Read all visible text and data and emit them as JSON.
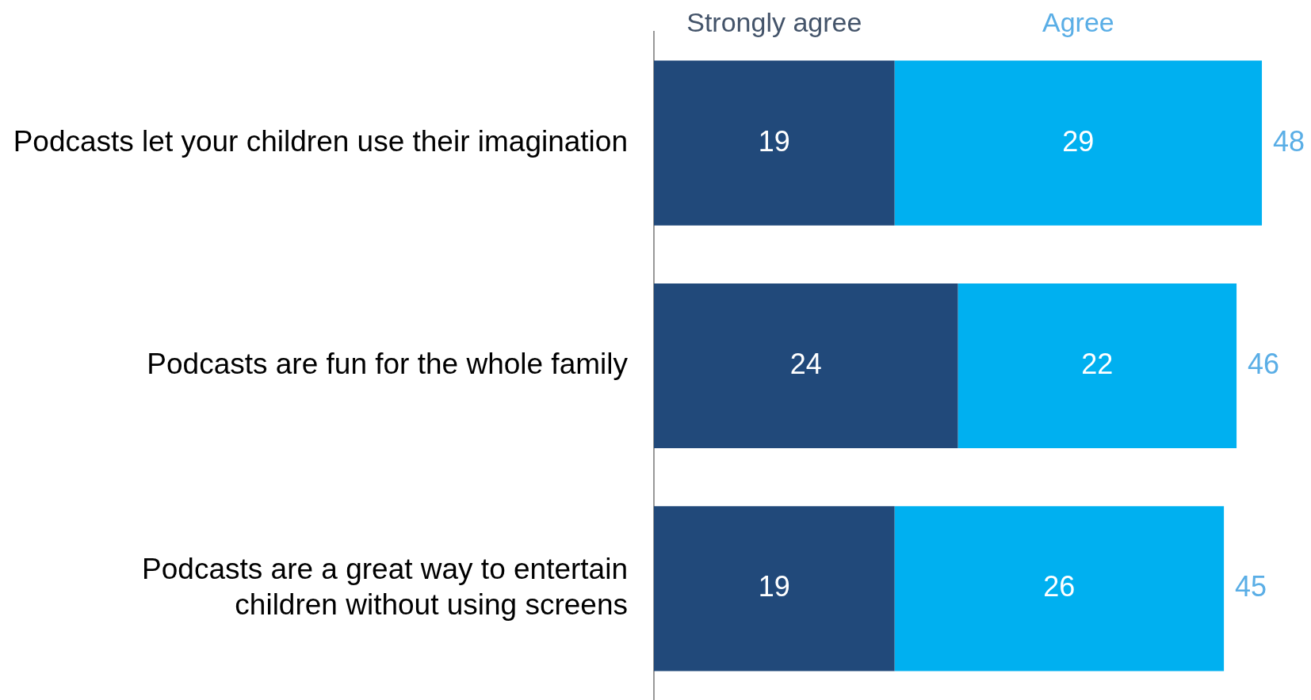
{
  "chart_data": {
    "type": "bar",
    "orientation": "horizontal",
    "stacked": true,
    "categories": [
      "Podcasts let your children use their imagination",
      "Podcasts are fun for the whole family",
      "Podcasts are a great way to entertain\nchildren without using screens"
    ],
    "series": [
      {
        "name": "Strongly agree",
        "color": "#21497a",
        "values": [
          19,
          24,
          19
        ]
      },
      {
        "name": "Agree",
        "color": "#00b0f0",
        "values": [
          29,
          22,
          26
        ]
      }
    ],
    "tick_labels": "y",
    "grid": false,
    "legend": false,
    "data_labels": true,
    "totals": [
      "48",
      "46",
      "45"
    ]
  }
}
